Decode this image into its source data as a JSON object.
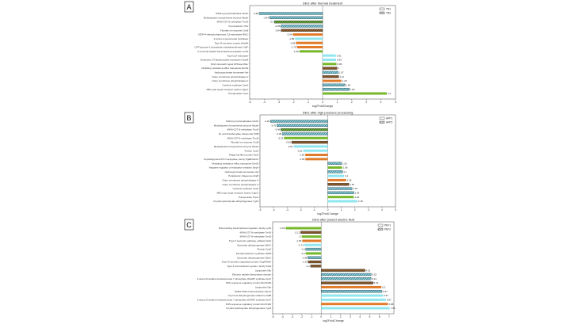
{
  "chart_data": [
    {
      "type": "bar",
      "orientation": "horizontal",
      "panel": "A",
      "title": "DEG after thermal treatment",
      "xlabel": "log2FoldChange",
      "xlim": [
        -5,
        5
      ],
      "xticks": [
        -5,
        -4,
        -3,
        -2,
        -1,
        0,
        1,
        2,
        3,
        4,
        5
      ],
      "legend": {
        "position": "top-right",
        "entries": [
          {
            "name": "TR1",
            "hatched": false
          },
          {
            "name": "TR2",
            "hatched": true
          }
        ]
      },
      "grid": false,
      "bars": [
        {
          "label": "NADH pyrophosphatase NudC",
          "value": -4.35,
          "color": "#8fe6ef",
          "hatched": true
        },
        {
          "label": "Molybdopterin biosynthesis enzyme MoaA",
          "value": -3.64,
          "color": "#8fe6ef",
          "hatched": true
        },
        {
          "label": "tRNA G37 N-methylase TrmD",
          "value": -3.3,
          "color": "#76b82a",
          "hatched": true
        },
        {
          "label": "Peroxiredoxin YfiA",
          "value": -2.86,
          "color": "#8fe6ef",
          "hatched": true
        },
        {
          "label": "Fluoride ion exporter CrcB",
          "value": -2.84,
          "color": "#a8621e",
          "hatched": true
        },
        {
          "label": "dTDP-4-dehydrorhamnose 3,5-epimerase RfbC",
          "value": -2.04,
          "color": "#e07b2a",
          "hatched": false
        },
        {
          "label": "2-amino-4-pentenoate hydrolase",
          "value": -1.89,
          "color": "#8fe6ef",
          "hatched": false
        },
        {
          "label": "Type III secretion protein (HrpB)",
          "value": -1.83,
          "color": "#e07b2a",
          "hatched": false
        },
        {
          "label": "UTP-glucose-1-phosphate uridylyltransferase GalF",
          "value": -1.76,
          "color": "#e07b2a",
          "hatched": false
        },
        {
          "label": "C-terminal related transcriptional regulator LuxR",
          "value": -1.59,
          "color": "#76b82a",
          "hatched": false
        },
        {
          "label": "Acyl-CoA reductase",
          "value": 0.91,
          "color": "#8fe6ef",
          "hatched": false
        },
        {
          "label": "Anaerobic C4-dicarboxylate transporter DcuB",
          "value": 0.93,
          "color": "#8fe6ef",
          "hatched": false
        },
        {
          "label": "DNA mismatch repair ATPase MutL",
          "value": 0.95,
          "color": "#76b82a",
          "hatched": false
        },
        {
          "label": "Multidrug resistance efflux transporter EmrE",
          "value": 1.0,
          "color": "#a8621e",
          "hatched": true
        },
        {
          "label": "Hydroxypyruvate isomerase Hyi",
          "value": 1.07,
          "color": "#8fe6ef",
          "hatched": true
        },
        {
          "label": "Outer membrane phospholipase A",
          "value": 1.11,
          "color": "#a8621e",
          "hatched": true
        },
        {
          "label": "Outer membrane phospholipase A",
          "value": 1.29,
          "color": "#e07b2a",
          "hatched": false
        },
        {
          "label": "Cysteine synthase CysK",
          "value": 1.54,
          "color": "#8fe6ef",
          "hatched": true
        },
        {
          "label": "ABC-type sugar transport system UgpC",
          "value": 1.83,
          "color": "#8fe6ef",
          "hatched": true
        },
        {
          "label": "Transposase TnpA",
          "value": 4.4,
          "color": "#76b82a",
          "hatched": false
        }
      ]
    },
    {
      "type": "bar",
      "orientation": "horizontal",
      "panel": "B",
      "title": "DEG after high pressure processing",
      "xlabel": "log2FoldChange",
      "xlim": [
        -5,
        5
      ],
      "xticks": [
        -5,
        -4,
        -3,
        -2,
        -1,
        0,
        1,
        2,
        3,
        4,
        5
      ],
      "legend": {
        "position": "top-right",
        "entries": [
          {
            "name": "HPP1",
            "hatched": false
          },
          {
            "name": "HPP2",
            "hatched": true
          }
        ]
      },
      "grid": false,
      "bars": [
        {
          "label": "NADH pyrophosphatase NudC",
          "value": -4.23,
          "color": "#8fe6ef",
          "hatched": true
        },
        {
          "label": "Molybdopterin biosynthesis enzyme MoaA",
          "value": -3.76,
          "color": "#8fe6ef",
          "hatched": true
        },
        {
          "label": "tRNA G37 N-methylase TrmD",
          "value": -3.46,
          "color": "#76b82a",
          "hatched": true
        },
        {
          "label": "Di- and tricarboxylate transporter TctB",
          "value": -3.35,
          "color": "#8fe6ef",
          "hatched": true
        },
        {
          "label": "tRNA G37 N-methylase TrmD",
          "value": -3.23,
          "color": "#76b82a",
          "hatched": false
        },
        {
          "label": "Fluoride ion exporter CrcB",
          "value": -2.66,
          "color": "#a8621e",
          "hatched": true
        },
        {
          "label": "Molybdopterin biosynthesis enzyme MoaA",
          "value": -2.51,
          "color": "#8fe6ef",
          "hatched": false
        },
        {
          "label": "Protein CysZ",
          "value": -1.81,
          "color": "#8fe6ef",
          "hatched": false
        },
        {
          "label": "Phage tail fiber protein FipD",
          "value": -1.66,
          "color": "#e07b2a",
          "hatched": false
        },
        {
          "label": "Peptidoglycan/LPS O-acetylase, family PgaB/CDA1",
          "value": -1.65,
          "color": "#e07b2a",
          "hatched": false
        },
        {
          "label": "Multidrug resistance efflux transporter EmrE",
          "value": 1.02,
          "color": "#8fe6ef",
          "hatched": true
        },
        {
          "label": "Negative regulator of replication initiation SeqA",
          "value": 1.06,
          "color": "#76b82a",
          "hatched": false
        },
        {
          "label": "Hydroxypyruvate isomerase Hyi",
          "value": 1.1,
          "color": "#8fe6ef",
          "hatched": true
        },
        {
          "label": "Periplasmic chaperone ZraP",
          "value": 1.2,
          "color": "#8fe6ef",
          "hatched": false
        },
        {
          "label": "Outer membrane phospholipase A",
          "value": 1.35,
          "color": "#e07b2a",
          "hatched": false
        },
        {
          "label": "Outer membrane phospholipase A",
          "value": 1.57,
          "color": "#a8621e",
          "hatched": true
        },
        {
          "label": "Cysteine synthase CysK",
          "value": 1.79,
          "color": "#8fe6ef",
          "hatched": true
        },
        {
          "label": "ABC-type sugar transport system UgpC",
          "value": 1.93,
          "color": "#8fe6ef",
          "hatched": true
        },
        {
          "label": "Transposase TnpA",
          "value": 1.92,
          "color": "#76b82a",
          "hatched": false
        },
        {
          "label": "3-hydroxyisobutyrate dehydrogenase YgbJ",
          "value": 2.18,
          "color": "#8fe6ef",
          "hatched": false
        }
      ]
    },
    {
      "type": "bar",
      "orientation": "horizontal",
      "panel": "C",
      "title": "DEG after pulsed electric field",
      "xlabel": "log2FoldChange",
      "xlim": [
        -5,
        7.5
      ],
      "xticks": [
        -5,
        -4,
        -3,
        -2,
        -1,
        0,
        1,
        2,
        3,
        4,
        5,
        6,
        7
      ],
      "legend": {
        "position": "top-right",
        "entries": [
          {
            "name": "PEF1",
            "hatched": false
          },
          {
            "name": "PEF2",
            "hatched": true
          }
        ]
      },
      "grid": false,
      "bars": [
        {
          "label": "DNA-binding transcriptional regulator, family LysR",
          "value": -3.65,
          "color": "#76b82a",
          "hatched": false
        },
        {
          "label": "tRNA G37 N-methylase TrmD",
          "value": -2.12,
          "color": "#a8621e",
          "hatched": true
        },
        {
          "label": "tRNA G37 N-methylase TrmD",
          "value": -2.0,
          "color": "#76b82a",
          "hatched": false
        },
        {
          "label": "Type II secretory pathway, adhesin AidA",
          "value": -1.95,
          "color": "#e07b2a",
          "hatched": false
        },
        {
          "label": "Succinate dehydrogenase SdhC",
          "value": -1.74,
          "color": "#8fe6ef",
          "hatched": false
        },
        {
          "label": "Protein CysZ",
          "value": -1.6,
          "color": "#8fe6ef",
          "hatched": true
        },
        {
          "label": "Pentalenolactone synthase SdhB",
          "value": -1.6,
          "color": "#76b82a",
          "hatched": false
        },
        {
          "label": "Succinate dehydrogenase SdhC",
          "value": -1.38,
          "color": "#8fe6ef",
          "hatched": true
        },
        {
          "label": "Type III secretion apparatus protein OrgA/MxiK",
          "value": -1.33,
          "color": "#a8621e",
          "hatched": true
        },
        {
          "label": "Type II toxin-antitoxin system, family ParE",
          "value": -1.1,
          "color": "#a8621e",
          "hatched": true
        },
        {
          "label": "Lipoprotein Nlp",
          "value": 4.52,
          "color": "#a8621e",
          "hatched": true
        },
        {
          "label": "Electron transfer flavoprotein domain",
          "value": 5.15,
          "color": "#8fe6ef",
          "hatched": true
        },
        {
          "label": "3-deoxy-D-arabino-heptulosonate 7-phosphate (DAHP) synthase AroF",
          "value": 5.14,
          "color": "#8fe6ef",
          "hatched": true
        },
        {
          "label": "SOS-response regulatory protein DinI/YafN",
          "value": 5.34,
          "color": "#a8621e",
          "hatched": true
        },
        {
          "label": "Lipoprotein Nlp",
          "value": 6.2,
          "color": "#e07b2a",
          "hatched": false
        },
        {
          "label": "NADH:FMN oxidoreductase NemA",
          "value": 6.27,
          "color": "#8fe6ef",
          "hatched": true
        },
        {
          "label": "Acyl-CoA dehydrogenase related to AidB",
          "value": 6.37,
          "color": "#8fe6ef",
          "hatched": false
        },
        {
          "label": "3-deoxy-D-arabino-heptulosonate 7-phosphate (DAHP) synthase AroF",
          "value": 6.67,
          "color": "#8fe6ef",
          "hatched": false
        },
        {
          "label": "SOS-response regulatory protein DinI/YafN",
          "value": 6.88,
          "color": "#e07b2a",
          "hatched": false
        },
        {
          "label": "3-hydroxyisobutyrate dehydrogenase YgbJ",
          "value": 7.06,
          "color": "#8fe6ef",
          "hatched": false
        }
      ]
    }
  ]
}
